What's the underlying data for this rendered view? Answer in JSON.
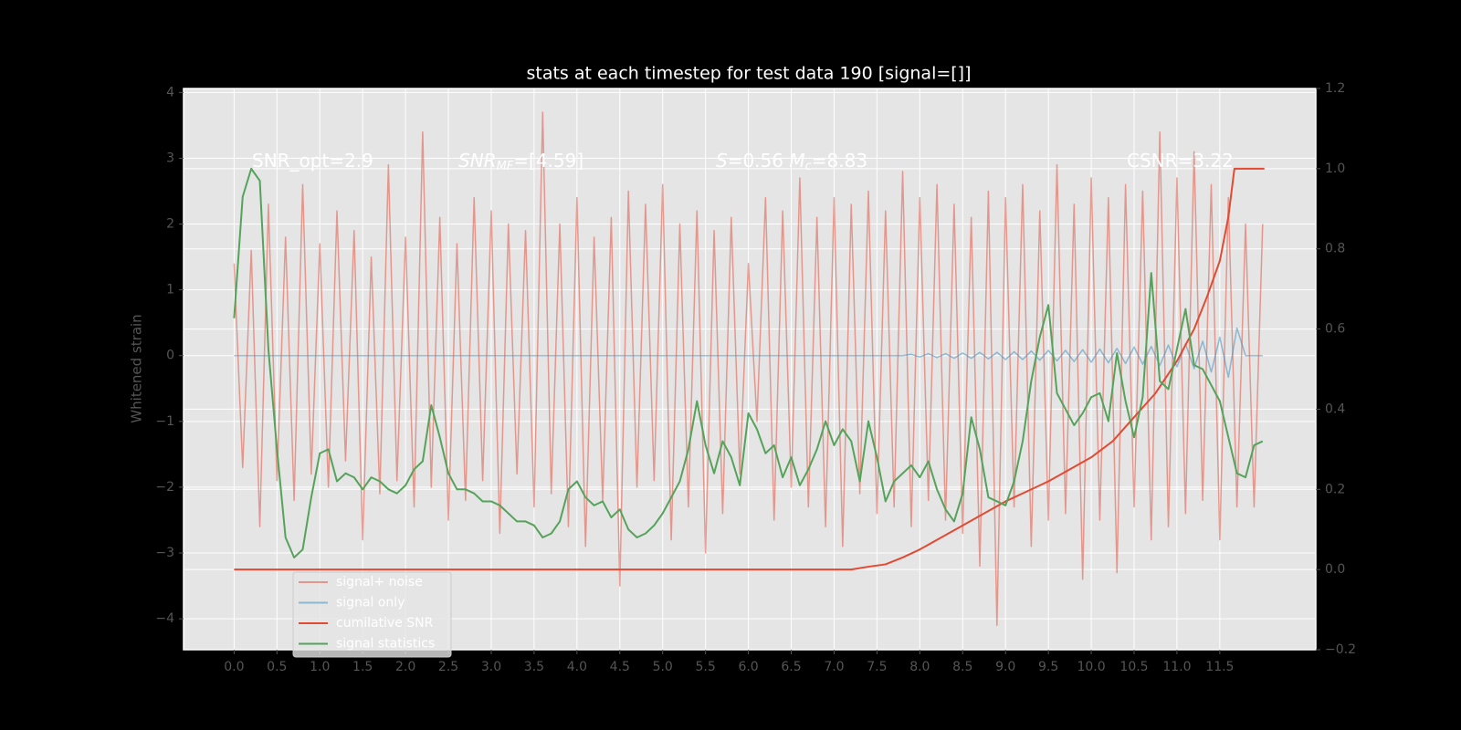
{
  "chart_data": {
    "type": "line",
    "title": "stats at each timestep for test data 190 [signal=[]]",
    "ylabel": "Whitened strain",
    "annotations": [
      {
        "parts": [
          {
            "text": "SNR_opt=2.9",
            "style": "normal"
          }
        ]
      },
      {
        "parts": [
          {
            "text": "SNR",
            "style": "italic"
          },
          {
            "text": "MF",
            "style": "sub"
          },
          {
            "text": "=[4.59]",
            "style": "normal"
          }
        ]
      },
      {
        "parts": [
          {
            "text": "S",
            "style": "italic"
          },
          {
            "text": "=0.56  ",
            "style": "normal"
          },
          {
            "text": "M",
            "style": "italic"
          },
          {
            "text": "c",
            "style": "sub"
          },
          {
            "text": "=8.83",
            "style": "normal"
          }
        ]
      },
      {
        "parts": [
          {
            "text": "CSNR=3.22",
            "style": "normal"
          }
        ]
      }
    ],
    "x": [
      0,
      0.1,
      0.2,
      0.3,
      0.4,
      0.5,
      0.6,
      0.7,
      0.8,
      0.9,
      1,
      1.1,
      1.2,
      1.3,
      1.4,
      1.5,
      1.6,
      1.7,
      1.8,
      1.9,
      2,
      2.1,
      2.2,
      2.3,
      2.4,
      2.5,
      2.6,
      2.7,
      2.8,
      2.9,
      3,
      3.1,
      3.2,
      3.3,
      3.4,
      3.5,
      3.6,
      3.7,
      3.8,
      3.9,
      4,
      4.1,
      4.2,
      4.3,
      4.4,
      4.5,
      4.6,
      4.7,
      4.8,
      4.9,
      5,
      5.1,
      5.2,
      5.3,
      5.4,
      5.5,
      5.6,
      5.7,
      5.8,
      5.9,
      6,
      6.1,
      6.2,
      6.3,
      6.4,
      6.5,
      6.6,
      6.7,
      6.8,
      6.9,
      7,
      7.1,
      7.2,
      7.3,
      7.4,
      7.5,
      7.6,
      7.7,
      7.8,
      7.9,
      8,
      8.1,
      8.2,
      8.3,
      8.4,
      8.5,
      8.6,
      8.7,
      8.8,
      8.9,
      9,
      9.1,
      9.2,
      9.3,
      9.4,
      9.5,
      9.6,
      9.7,
      9.8,
      9.9,
      10,
      10.1,
      10.2,
      10.3,
      10.4,
      10.5,
      10.6,
      10.7,
      10.8,
      10.9,
      11,
      11.1,
      11.2,
      11.3,
      11.4,
      11.5,
      11.6,
      11.7,
      11.8,
      11.9,
      12
    ],
    "series": [
      {
        "name": "signal+ noise",
        "color": "#E24A33",
        "opacity": 0.5,
        "axis": "y",
        "values": [
          1.4,
          -1.7,
          1.6,
          -2.6,
          2.3,
          -1.9,
          1.8,
          -2.2,
          2.6,
          -1.8,
          1.7,
          -2.0,
          2.2,
          -1.6,
          1.9,
          -2.8,
          1.5,
          -2.1,
          2.9,
          -1.9,
          1.8,
          -2.3,
          3.4,
          -2.0,
          2.1,
          -2.5,
          1.7,
          -2.2,
          2.4,
          -1.9,
          2.2,
          -2.7,
          2.0,
          -1.8,
          1.9,
          -2.3,
          3.7,
          -2.1,
          2.0,
          -2.6,
          2.4,
          -2.9,
          1.8,
          -2.2,
          2.1,
          -3.5,
          2.5,
          -2.0,
          2.3,
          -1.9,
          2.6,
          -2.8,
          2.0,
          -2.3,
          2.2,
          -3.0,
          1.9,
          -2.4,
          2.1,
          -1.8,
          1.4,
          -1.0,
          2.4,
          -2.5,
          2.2,
          -2.0,
          2.7,
          -2.3,
          2.1,
          -2.6,
          2.4,
          -2.9,
          2.3,
          -2.1,
          2.5,
          -2.4,
          2.2,
          -2.3,
          2.8,
          -2.6,
          2.4,
          -2.2,
          2.6,
          -2.5,
          2.3,
          -2.7,
          2.1,
          -3.2,
          2.5,
          -4.1,
          2.4,
          -2.3,
          2.6,
          -2.9,
          2.2,
          -2.5,
          2.9,
          -2.4,
          2.3,
          -3.4,
          2.7,
          -2.5,
          2.4,
          -3.3,
          2.6,
          -2.3,
          2.5,
          -2.8,
          3.4,
          -2.6,
          2.7,
          -2.4,
          3.1,
          -2.2,
          2.6,
          -2.8,
          2.4,
          -2.3,
          2.0,
          -2.3,
          2.0
        ]
      },
      {
        "name": "signal only",
        "color": "#348ABD",
        "opacity": 0.5,
        "axis": "y",
        "x": [
          0,
          7.8,
          7.9,
          8,
          8.1,
          8.2,
          8.3,
          8.4,
          8.5,
          8.6,
          8.7,
          8.8,
          8.9,
          9,
          9.1,
          9.2,
          9.3,
          9.4,
          9.5,
          9.6,
          9.7,
          9.8,
          9.9,
          10,
          10.1,
          10.2,
          10.3,
          10.4,
          10.5,
          10.6,
          10.7,
          10.8,
          10.9,
          11,
          11.1,
          11.2,
          11.3,
          11.4,
          11.5,
          11.6,
          11.7,
          11.8,
          12
        ],
        "values": [
          0,
          0,
          0.02,
          -0.02,
          0.03,
          -0.03,
          0.03,
          -0.04,
          0.04,
          -0.04,
          0.05,
          -0.05,
          0.05,
          -0.06,
          0.06,
          -0.06,
          0.07,
          -0.07,
          0.08,
          -0.08,
          0.08,
          -0.09,
          0.09,
          -0.1,
          0.1,
          -0.11,
          0.11,
          -0.12,
          0.13,
          -0.13,
          0.14,
          -0.15,
          0.16,
          -0.17,
          0.18,
          -0.2,
          0.22,
          -0.25,
          0.28,
          -0.33,
          0.42,
          0,
          0
        ]
      },
      {
        "name": "cumilative SNR",
        "color": "#E24A33",
        "opacity": 1,
        "axis": "y2",
        "x": [
          0,
          7.2,
          7.4,
          7.6,
          7.8,
          8,
          8.25,
          8.5,
          8.75,
          9,
          9.25,
          9.5,
          9.75,
          10,
          10.25,
          10.5,
          10.75,
          11,
          11.2,
          11.35,
          11.5,
          11.6,
          11.67,
          12.02
        ],
        "values": [
          0,
          0,
          0.007,
          0.013,
          0.03,
          0.05,
          0.08,
          0.11,
          0.14,
          0.17,
          0.195,
          0.22,
          0.25,
          0.28,
          0.32,
          0.38,
          0.44,
          0.52,
          0.6,
          0.68,
          0.77,
          0.88,
          1.0,
          1.0
        ]
      },
      {
        "name": "signal statistics",
        "color": "#55A35A",
        "opacity": 1,
        "axis": "y2",
        "values": [
          0.627,
          0.93,
          1.0,
          0.97,
          0.55,
          0.3,
          0.08,
          0.03,
          0.05,
          0.18,
          0.29,
          0.3,
          0.22,
          0.24,
          0.23,
          0.2,
          0.23,
          0.22,
          0.2,
          0.19,
          0.21,
          0.25,
          0.27,
          0.41,
          0.33,
          0.24,
          0.2,
          0.2,
          0.19,
          0.17,
          0.17,
          0.16,
          0.14,
          0.12,
          0.12,
          0.11,
          0.08,
          0.09,
          0.12,
          0.2,
          0.22,
          0.18,
          0.16,
          0.17,
          0.13,
          0.15,
          0.1,
          0.08,
          0.09,
          0.11,
          0.14,
          0.18,
          0.22,
          0.3,
          0.42,
          0.31,
          0.24,
          0.32,
          0.28,
          0.21,
          0.39,
          0.35,
          0.29,
          0.31,
          0.23,
          0.28,
          0.21,
          0.25,
          0.3,
          0.37,
          0.31,
          0.35,
          0.32,
          0.22,
          0.37,
          0.28,
          0.17,
          0.22,
          0.24,
          0.26,
          0.23,
          0.27,
          0.2,
          0.15,
          0.12,
          0.19,
          0.38,
          0.3,
          0.18,
          0.17,
          0.16,
          0.22,
          0.32,
          0.47,
          0.58,
          0.66,
          0.44,
          0.4,
          0.36,
          0.39,
          0.43,
          0.44,
          0.37,
          0.54,
          0.42,
          0.33,
          0.43,
          0.74,
          0.47,
          0.45,
          0.55,
          0.65,
          0.51,
          0.5,
          0.46,
          0.42,
          0.33,
          0.24,
          0.23,
          0.31,
          0.32
        ]
      }
    ],
    "xlim": [
      -0.59,
      12.62
    ],
    "xticks": [
      {
        "value": 0,
        "label": "0.0"
      },
      0.5,
      {
        "value": 1,
        "label": "1.0"
      },
      1.5,
      {
        "value": 2,
        "label": "2.0"
      },
      2.5,
      {
        "value": 3,
        "label": "3.0"
      },
      3.5,
      {
        "value": 4,
        "label": "4.0"
      },
      4.5,
      {
        "value": 5,
        "label": "5.0"
      },
      5.5,
      {
        "value": 6,
        "label": "6.0"
      },
      6.5,
      {
        "value": 7,
        "label": "7.0"
      },
      7.5,
      {
        "value": 8,
        "label": "8.0"
      },
      8.5,
      {
        "value": 9,
        "label": "9.0"
      },
      9.5,
      {
        "value": 10,
        "label": "10.0"
      },
      10.5,
      {
        "value": 11,
        "label": "11.0"
      },
      11.5
    ],
    "ylim": [
      -4.47,
      4.06
    ],
    "yticks": [
      {
        "value": -4,
        "label": "−4"
      },
      {
        "value": -3,
        "label": "−3"
      },
      {
        "value": -2,
        "label": "−2"
      },
      {
        "value": -1,
        "label": "−1"
      },
      0,
      1,
      2,
      3,
      4
    ],
    "y2lim": [
      -0.2,
      1.2
    ],
    "y2ticks": [
      {
        "value": -0.2,
        "label": "−0.2"
      },
      {
        "value": 0,
        "label": "0.0"
      },
      0.2,
      0.4,
      0.6,
      0.8,
      {
        "value": 1,
        "label": "1.0"
      },
      1.2
    ],
    "grid": true
  }
}
